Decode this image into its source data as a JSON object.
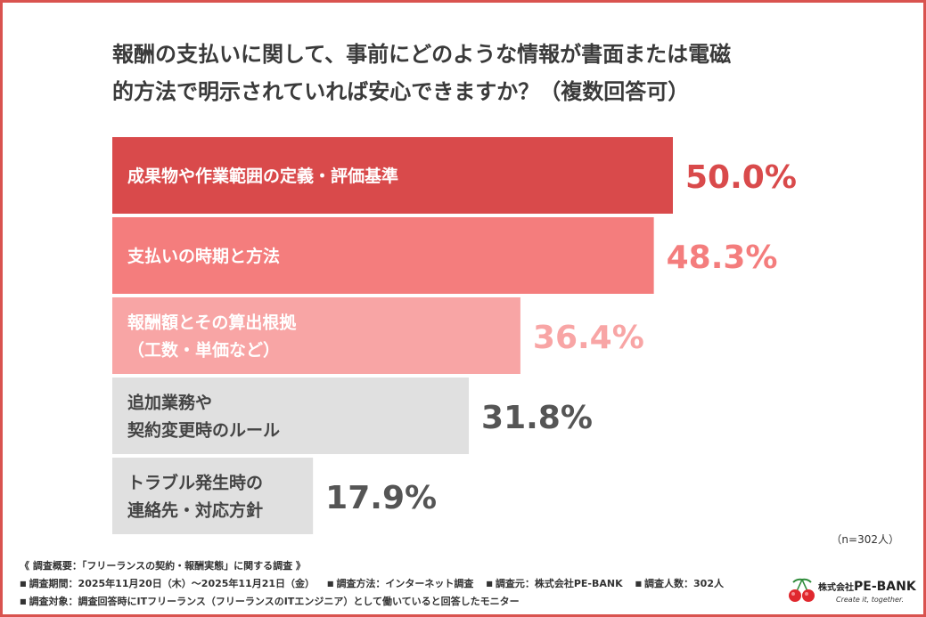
{
  "title_line1": "報酬の支払いに関して、事前にどのような情報が書面または電磁",
  "title_line2": "的方法で明示されていれば安心できますか？（複数回答可）",
  "sample_note": "（n=302人）",
  "footer": {
    "line1": "《 調査概要：「フリーランスの契約・報酬実態」に関する調査 》",
    "period": "調査期間：2025年11月20日（木）〜2025年11月21日（金）",
    "method": "調査方法：インターネット調査",
    "source": "調査元：株式会社PE-BANK",
    "count": "調査人数：302人",
    "target": "調査対象：調査回答時にITフリーランス（フリーランスのITエンジニア）として働いていると回答したモニター"
  },
  "logo": {
    "company_small": "株式会社",
    "company_name": "PE-BANK",
    "tagline": "Create it, together."
  },
  "chart_data": {
    "type": "bar",
    "orientation": "horizontal",
    "title": "報酬の支払いに関して、事前にどのような情報が書面または電磁的方法で明示されていれば安心できますか？（複数回答可）",
    "categories": [
      [
        "成果物や作業範囲の定義・評価基準"
      ],
      [
        "支払いの時期と方法"
      ],
      [
        "報酬額とその算出根拠",
        "（工数・単価など）"
      ],
      [
        "追加業務や",
        "契約変更時のルール"
      ],
      [
        "トラブル発生時の",
        "連絡先・対応方針"
      ]
    ],
    "values": [
      50.0,
      48.3,
      36.4,
      31.8,
      17.9
    ],
    "value_labels": [
      "50.0%",
      "48.3%",
      "36.4%",
      "31.8%",
      "17.9%"
    ],
    "bar_colors": [
      "#d94a4b",
      "#f47d7d",
      "#f8a5a5",
      "#e0e0e0",
      "#e0e0e0"
    ],
    "label_colors": [
      "#d94a4b",
      "#f47d7d",
      "#f8a5a5",
      "#555555",
      "#555555"
    ],
    "category_text_colors": [
      "#ffffff",
      "#ffffff",
      "#ffffff",
      "#444444",
      "#444444"
    ],
    "xlim": [
      0,
      50
    ],
    "grid": false,
    "legend": "none"
  }
}
